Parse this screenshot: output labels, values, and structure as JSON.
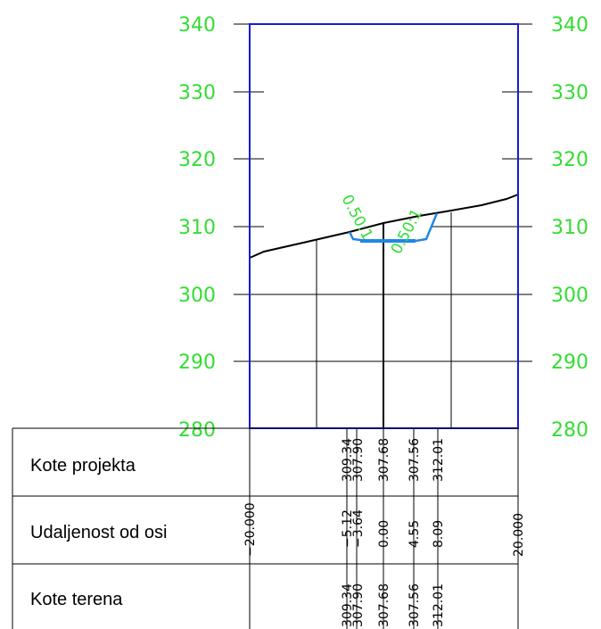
{
  "elevation_axis": {
    "ticks": [
      "340",
      "330",
      "320",
      "310",
      "300",
      "290",
      "280"
    ]
  },
  "rows": {
    "kote_projekta": "Kote projekta",
    "udaljenost": "Udaljenost od osi",
    "kote_terena": "Kote terena"
  },
  "slope_labels": {
    "left": "0.50:1",
    "right": "0.50:1"
  },
  "points": [
    {
      "projekta": "309.34",
      "udaljenost": "−5.12",
      "terena": "309.34"
    },
    {
      "projekta": "307.90",
      "udaljenost": "−3.64",
      "terena": "307.90"
    },
    {
      "projekta": "307.68",
      "udaljenost": "0.00",
      "terena": "307.68"
    },
    {
      "projekta": "307.56",
      "udaljenost": "4.55",
      "terena": "307.56"
    },
    {
      "projekta": "312.01",
      "udaljenost": "8.09",
      "terena": "312.01"
    }
  ],
  "edge_distances": {
    "left": "−20.000",
    "right": "20.000"
  },
  "colors": {
    "axis_text": "#33dd33",
    "frame": "#1a1ad4",
    "design": "#1e88e5",
    "terrain": "#000000"
  }
}
